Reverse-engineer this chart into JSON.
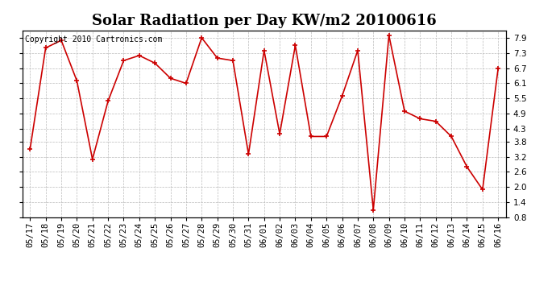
{
  "title": "Solar Radiation per Day KW/m2 20100616",
  "copyright": "Copyright 2010 Cartronics.com",
  "x_labels": [
    "05/17",
    "05/18",
    "05/19",
    "05/20",
    "05/21",
    "05/22",
    "05/23",
    "05/24",
    "05/25",
    "05/26",
    "05/27",
    "05/28",
    "05/29",
    "05/30",
    "05/31",
    "06/01",
    "06/02",
    "06/03",
    "06/04",
    "06/05",
    "06/06",
    "06/07",
    "06/08",
    "06/09",
    "06/10",
    "06/11",
    "06/12",
    "06/13",
    "06/14",
    "06/15",
    "06/16"
  ],
  "y_values": [
    3.5,
    7.5,
    7.8,
    6.2,
    3.1,
    5.4,
    7.0,
    7.2,
    6.9,
    6.3,
    6.1,
    7.9,
    7.1,
    7.0,
    3.3,
    7.4,
    4.1,
    7.6,
    4.0,
    4.0,
    5.6,
    7.4,
    1.1,
    8.0,
    5.0,
    4.7,
    4.6,
    4.0,
    2.8,
    1.9,
    6.7
  ],
  "ylim": [
    0.8,
    8.2
  ],
  "yticks": [
    0.8,
    1.4,
    2.0,
    2.6,
    3.2,
    3.8,
    4.3,
    4.9,
    5.5,
    6.1,
    6.7,
    7.3,
    7.9
  ],
  "line_color": "#cc0000",
  "marker": "+",
  "bg_color": "#ffffff",
  "grid_color": "#bbbbbb",
  "title_fontsize": 13,
  "tick_fontsize": 7.5,
  "copyright_fontsize": 7
}
